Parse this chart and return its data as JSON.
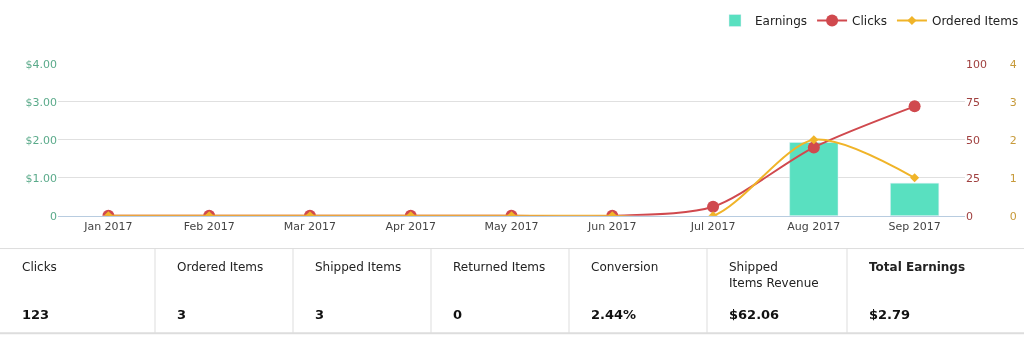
{
  "chart_data": {
    "type": "bar",
    "categories": [
      "Jan 2017",
      "Feb 2017",
      "Mar 2017",
      "Apr 2017",
      "May 2017",
      "Jun 2017",
      "Jul 2017",
      "Aug 2017",
      "Sep 2017"
    ],
    "series": [
      {
        "name": "Earnings",
        "color": "#59e0c0",
        "values": [
          null,
          null,
          null,
          null,
          null,
          null,
          null,
          1.93,
          0.86
        ]
      },
      {
        "name": "Clicks",
        "type": "line",
        "axis": "y2",
        "color": "#d0494e",
        "marker": "circle",
        "values": [
          0,
          0,
          0,
          0,
          0,
          0,
          6,
          45,
          72
        ]
      },
      {
        "name": "Ordered Items",
        "type": "line",
        "axis": "y3",
        "color": "#f0b429",
        "marker": "diamond",
        "values": [
          0,
          0,
          0,
          0,
          0,
          0,
          0,
          2,
          1
        ]
      }
    ],
    "ylim": [
      0,
      4
    ],
    "yticks": [
      {
        "value": 0,
        "label": "0"
      },
      {
        "value": 1,
        "label": "$1.00"
      },
      {
        "value": 2,
        "label": "$2.00"
      },
      {
        "value": 3,
        "label": "$3.00"
      },
      {
        "value": 4,
        "label": "$4.00"
      }
    ],
    "y2lim": [
      0,
      100
    ],
    "y2ticks": [
      0,
      25,
      50,
      75,
      100
    ],
    "y3lim": [
      0,
      4
    ],
    "y3ticks": [
      0,
      1,
      2,
      3,
      4
    ],
    "grid": "y",
    "legend": "top right",
    "annotations": [
      "Clicks",
      "123",
      "Ordered Items",
      "3",
      "Shipped Items",
      "3",
      "Returned Items",
      "0",
      "Conversion",
      "2.44%",
      "Shipped Items Revenue",
      "$62.06",
      "Total Earnings",
      "$2.79"
    ]
  }
}
